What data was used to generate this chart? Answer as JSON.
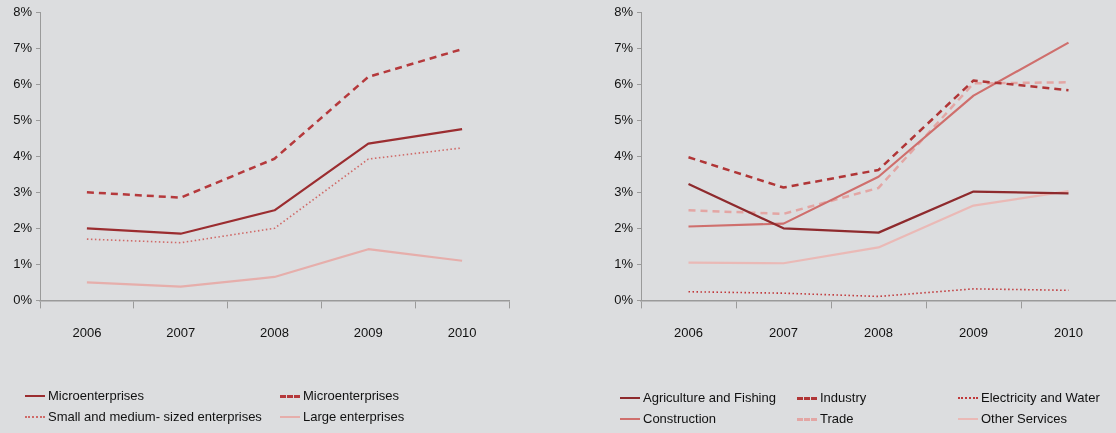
{
  "chart_data": [
    {
      "type": "line",
      "categories": [
        "2006",
        "2007",
        "2008",
        "2009",
        "2010"
      ],
      "series": [
        {
          "name": "Microenterprises",
          "color": "#9b2d30",
          "line_style": "solid",
          "values": [
            2.0,
            1.85,
            2.5,
            4.35,
            4.75
          ]
        },
        {
          "name": "Microenterprises",
          "color": "#b5393c",
          "line_style": "dashed",
          "values": [
            3.0,
            2.85,
            3.93,
            6.2,
            6.97
          ]
        },
        {
          "name": "Small and medium- sized enterprises",
          "color": "#cf6a68",
          "line_style": "dotted",
          "values": [
            1.7,
            1.6,
            2.0,
            3.92,
            4.23
          ]
        },
        {
          "name": "Large enterprises",
          "color": "#e6aeab",
          "line_style": "solid",
          "values": [
            0.5,
            0.38,
            0.65,
            1.42,
            1.1
          ]
        }
      ],
      "ylim": [
        0,
        8
      ],
      "yticks": [
        {
          "value": 0,
          "label": "0%"
        },
        {
          "value": 1,
          "label": "1%"
        },
        {
          "value": 2,
          "label": "2%"
        },
        {
          "value": 3,
          "label": "3%"
        },
        {
          "value": 4,
          "label": "4%"
        },
        {
          "value": 5,
          "label": "5%"
        },
        {
          "value": 6,
          "label": "6%"
        },
        {
          "value": 7,
          "label": "7%"
        },
        {
          "value": 8,
          "label": "8%"
        }
      ],
      "grid": false,
      "legend": "bottom",
      "marker": "none"
    },
    {
      "type": "line",
      "categories": [
        "2006",
        "2007",
        "2008",
        "2009",
        "2010"
      ],
      "series": [
        {
          "name": "Agriculture and Fishing",
          "color": "#8e2a2d",
          "line_style": "solid",
          "values": [
            3.23,
            2.0,
            1.88,
            3.02,
            2.97
          ]
        },
        {
          "name": "Industry",
          "color": "#b03536",
          "line_style": "dashed",
          "values": [
            3.97,
            3.13,
            3.62,
            6.1,
            5.83
          ]
        },
        {
          "name": "Electricity and Water",
          "color": "#c0393b",
          "line_style": "dotted",
          "values": [
            0.24,
            0.2,
            0.11,
            0.32,
            0.28
          ]
        },
        {
          "name": "Construction",
          "color": "#cf6f6d",
          "line_style": "solid",
          "values": [
            2.05,
            2.13,
            3.43,
            5.68,
            7.15
          ]
        },
        {
          "name": "Trade",
          "color": "#e3a6a4",
          "line_style": "dashed",
          "values": [
            2.5,
            2.4,
            3.12,
            6.02,
            6.05
          ]
        },
        {
          "name": "Other Services",
          "color": "#eab9b6",
          "line_style": "solid",
          "values": [
            1.05,
            1.03,
            1.47,
            2.63,
            3.03
          ]
        }
      ],
      "ylim": [
        0,
        8
      ],
      "yticks": [
        {
          "value": 0,
          "label": "0%"
        },
        {
          "value": 1,
          "label": "1%"
        },
        {
          "value": 2,
          "label": "2%"
        },
        {
          "value": 3,
          "label": "3%"
        },
        {
          "value": 4,
          "label": "4%"
        },
        {
          "value": 5,
          "label": "5%"
        },
        {
          "value": 6,
          "label": "6%"
        },
        {
          "value": 7,
          "label": "7%"
        },
        {
          "value": 8,
          "label": "8%"
        }
      ],
      "grid": false,
      "legend": "bottom",
      "marker": "none"
    }
  ]
}
